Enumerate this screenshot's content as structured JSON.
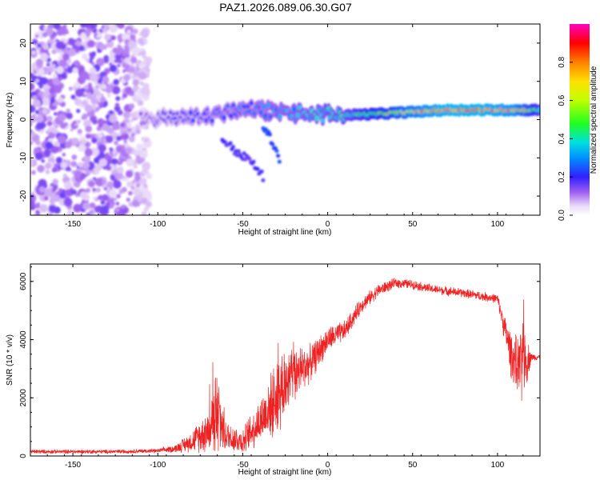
{
  "figure_title": "PAZ1.2026.089.06.30.G07",
  "chart_data": [
    {
      "type": "heatmap",
      "title": "PAZ1.2026.089.06.30.G07",
      "xlabel": "Height of straight line (km)",
      "ylabel": "Frequency (Hz)",
      "xlim": [
        -175,
        125
      ],
      "ylim": [
        -25,
        25
      ],
      "xticks": [
        -150,
        -100,
        -50,
        0,
        50,
        100
      ],
      "yticks": [
        -20,
        -10,
        0,
        10,
        20
      ],
      "colorbar": {
        "label": "Normalized spectral amplitude",
        "range": [
          0,
          1
        ],
        "ticks": [
          "0.0",
          "0.2",
          "0.4",
          "0.6",
          "0.8"
        ]
      },
      "description_series": [
        {
          "name": "noise_region",
          "x_range": [
            -175,
            -110
          ],
          "freq_spread": 25,
          "amplitude": 0.1
        },
        {
          "name": "signal_ridge",
          "x": [
            -110,
            -90,
            -70,
            -50,
            -30,
            -10,
            10,
            30,
            50,
            70,
            90,
            110,
            125
          ],
          "freq": [
            0,
            0.5,
            1,
            3,
            2,
            1.5,
            1.2,
            1.5,
            2,
            2.5,
            2.5,
            2.5,
            2.5
          ],
          "amplitude": [
            0.15,
            0.2,
            0.25,
            0.3,
            0.35,
            0.4,
            0.45,
            0.6,
            0.8,
            0.95,
            0.95,
            0.85,
            0.5
          ]
        },
        {
          "name": "secondary_branch",
          "x": [
            -62,
            -55,
            -45,
            -38
          ],
          "freq": [
            -5,
            -8,
            -11,
            -15
          ],
          "amplitude": 0.15
        },
        {
          "name": "tertiary_branch",
          "x": [
            -38,
            -32,
            -28
          ],
          "freq": [
            -2,
            -6,
            -11
          ],
          "amplitude": 0.2
        }
      ]
    },
    {
      "type": "line",
      "xlabel": "Height of straight line (km)",
      "ylabel": "SNR (10 * v/v)",
      "xlim": [
        -175,
        125
      ],
      "ylim": [
        0,
        6600
      ],
      "xticks": [
        -150,
        -100,
        -50,
        0,
        50,
        100
      ],
      "yticks": [
        0,
        2000,
        4000,
        6000
      ],
      "color": "#ee2222",
      "series": [
        {
          "name": "SNR envelope",
          "x": [
            -175,
            -150,
            -125,
            -100,
            -90,
            -80,
            -70,
            -65,
            -60,
            -50,
            -40,
            -30,
            -20,
            -15,
            -10,
            -5,
            0,
            10,
            20,
            30,
            40,
            50,
            60,
            80,
            100,
            105,
            108,
            112,
            115,
            120,
            125
          ],
          "base": [
            150,
            150,
            150,
            180,
            250,
            500,
            900,
            1500,
            700,
            500,
            1200,
            2000,
            2800,
            3000,
            3200,
            3600,
            4000,
            4300,
            5200,
            5700,
            5950,
            5900,
            5750,
            5600,
            5400,
            4200,
            3500,
            3000,
            3200,
            3400,
            3400
          ],
          "noise": [
            80,
            80,
            80,
            80,
            150,
            400,
            900,
            1800,
            600,
            500,
            900,
            1400,
            1200,
            900,
            700,
            600,
            500,
            400,
            300,
            250,
            200,
            180,
            180,
            180,
            180,
            600,
            900,
            1200,
            1500,
            150,
            100
          ]
        }
      ]
    }
  ]
}
